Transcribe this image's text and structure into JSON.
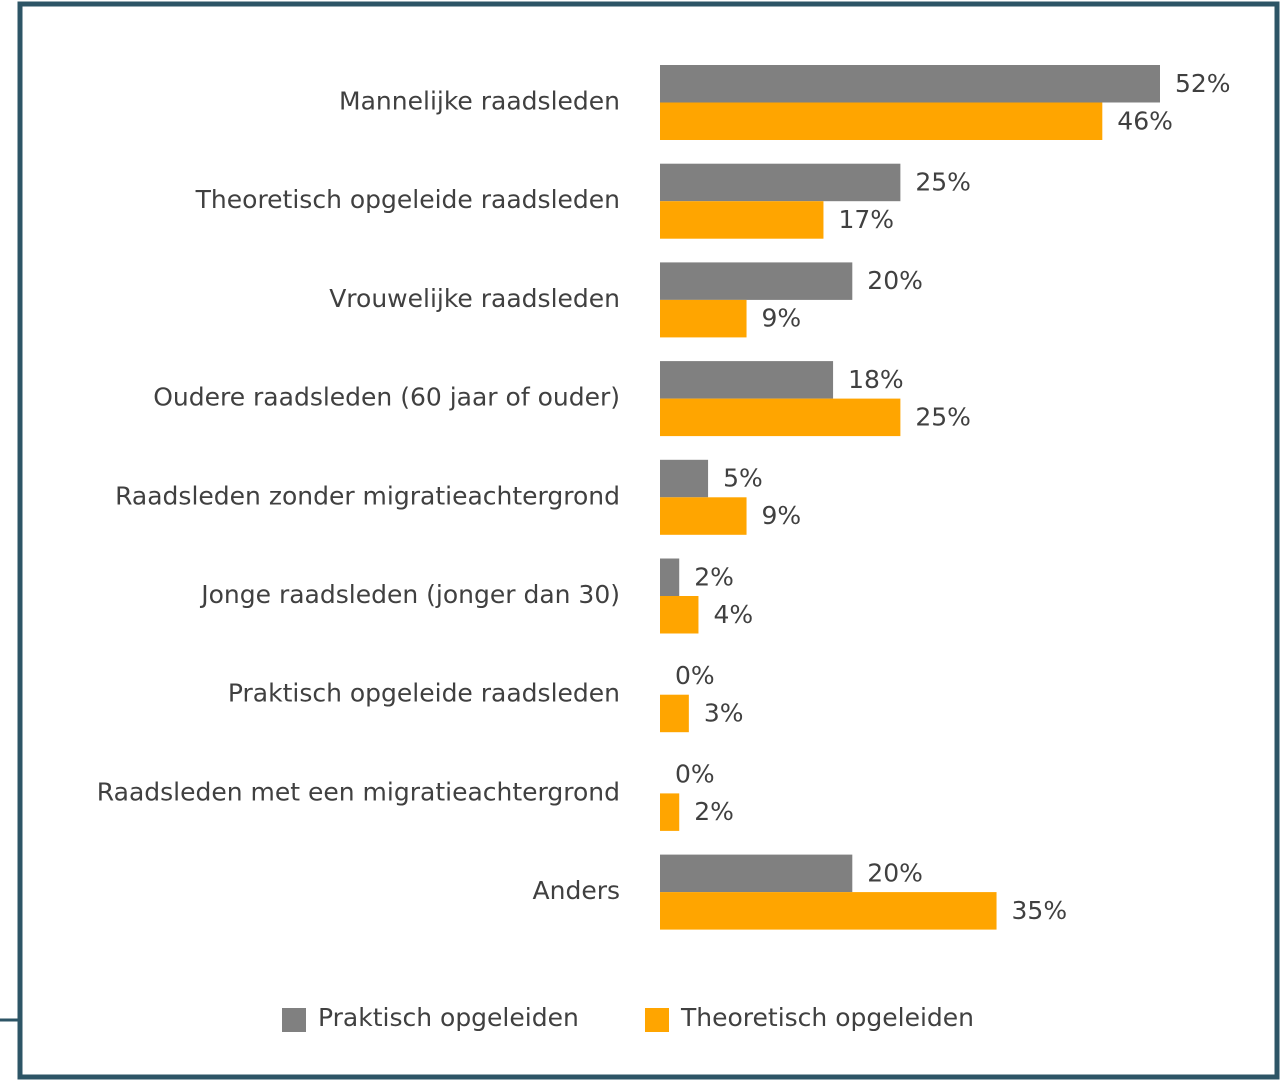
{
  "chart_data": {
    "type": "hbar",
    "categories": [
      "Mannelijke raadsleden",
      "Theoretisch opgeleide raadsleden",
      "Vrouwelijke raadsleden",
      "Oudere raadsleden (60 jaar of ouder)",
      "Raadsleden zonder migratieachtergrond",
      "Jonge raadsleden (jonger dan 30)",
      "Praktisch opgeleide raadsleden",
      "Raadsleden met een migratieachtergrond",
      "Anders"
    ],
    "series": [
      {
        "name": "Praktisch opgeleiden",
        "color": "#808080",
        "values": [
          52,
          25,
          20,
          18,
          5,
          2,
          0,
          0,
          20
        ],
        "value_labels": [
          "52%",
          "25%",
          "20%",
          "18%",
          "5%",
          "2%",
          "0%",
          "0%",
          "20%"
        ]
      },
      {
        "name": "Theoretisch opgeleiden",
        "color": "#ffa500",
        "values": [
          46,
          17,
          9,
          25,
          9,
          4,
          3,
          2,
          35
        ],
        "value_labels": [
          "46%",
          "17%",
          "9%",
          "25%",
          "9%",
          "4%",
          "3%",
          "2%",
          "35%"
        ]
      }
    ],
    "legend": "bottom"
  }
}
